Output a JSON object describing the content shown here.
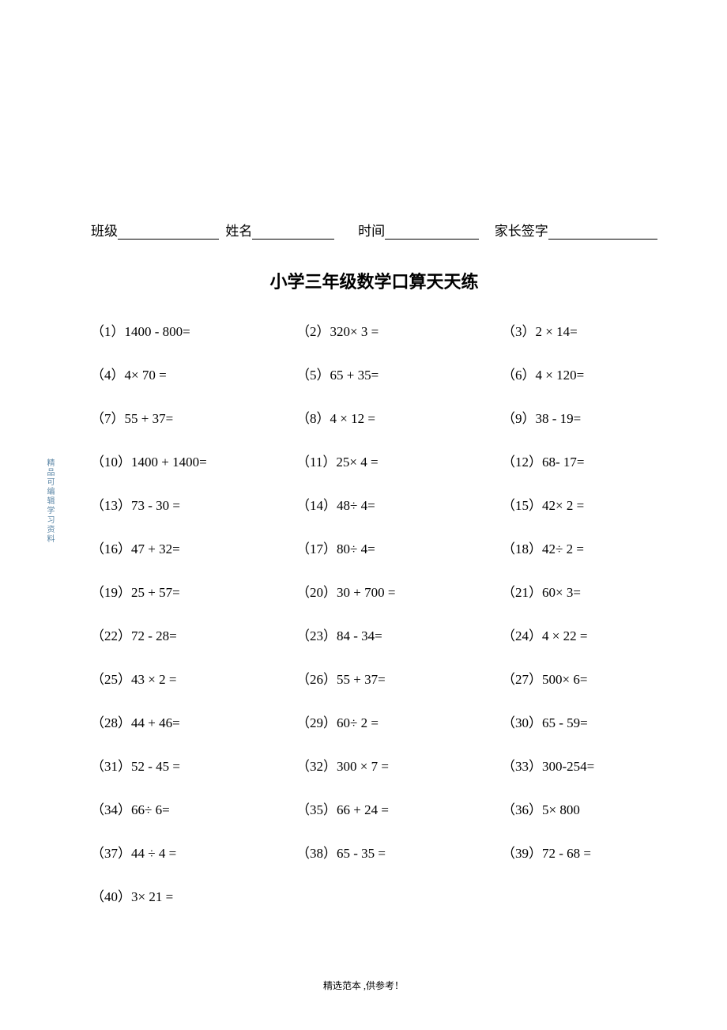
{
  "sidetext": "精品可编辑学习资料",
  "header": {
    "class_label": "班级",
    "name_label": "姓名",
    "time_label": "时间",
    "sign_label": "家长签字"
  },
  "title": "小学三年级数学口算天天练",
  "problems": [
    "（1）1400 -  800=",
    "（2）320×  3 =",
    "（3）2  ×  14=",
    "（4）4×   70 =",
    "（5）65   + 35=",
    "（6）4  ×   120=",
    "（7）55 + 37=",
    "（8）4  ×  12 =",
    "（9）38 -  19=",
    "（10）1400 + 1400=",
    "（11）25×  4 =",
    "（12）68- 17=",
    "（13）73 -  30 =",
    "（14）48÷   4=",
    "（15）42×  2 =",
    "（16）47 +   32=",
    "（17）80÷   4=",
    "（18）42÷   2 =",
    "（19）25 +   57=",
    "（20）30   +  700 =",
    "（21）60×   3=",
    "（22）72   -  28=",
    "（23）84   -  34=",
    "（24）4  ×  22 =",
    "（25）43  ×  2 =",
    "（26）55   + 37=",
    "（27）500×   6=",
    "（28）44 +   46=",
    "（29）60÷   2 =",
    "（30）65 -   59=",
    "（31）52 -   45 =",
    "（32）300  ×  7 =",
    "（33）300-254=",
    "（34）66÷   6=",
    "（35）66   + 24 =",
    "（36）5×   800",
    "（37）44  ÷  4 =",
    "（38）65 -   35 =",
    "（39）72   -  68 ="
  ],
  "problem_last": "（40）3×   21     =",
  "footer": "精选范本 ,供参考！"
}
